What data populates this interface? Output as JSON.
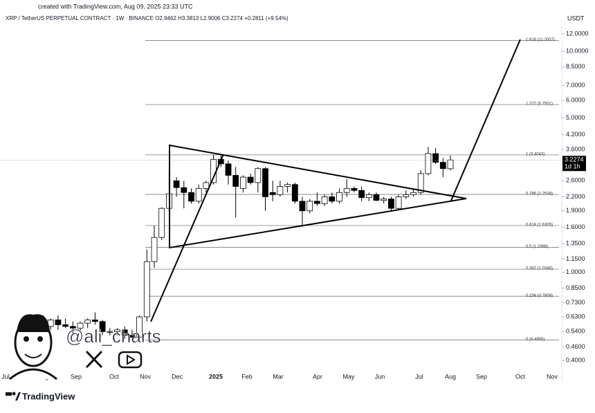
{
  "chart_data": {
    "type": "candlestick",
    "title": "created with TradingView.com, Aug 09, 2025 23:33 UTC",
    "subtitle": "XRP / TetherUS PERPETUAL CONTRACT · 1W · BINANCE  O2.9462  H3.3813  L2.9006  C3.2274  +0.2811 (+9.54%)",
    "currency": "USDT",
    "last_price": 3.2274,
    "countdown": "1d 1h",
    "watermark": "@ali_charts",
    "brand": "TradingView",
    "log_scale": true,
    "grid": false,
    "ylim": [
      0.3365,
      14.79
    ],
    "yticks": [
      {
        "value": 12,
        "label": "12.0000"
      },
      {
        "value": 10,
        "label": "10.0000"
      },
      {
        "value": 8.5,
        "label": "8.5000"
      },
      {
        "value": 7,
        "label": "7.0000"
      },
      {
        "value": 6,
        "label": "6.0000"
      },
      {
        "value": 5,
        "label": "5.0000"
      },
      {
        "value": 4.2,
        "label": "4.2000"
      },
      {
        "value": 3.6,
        "label": "3.6000"
      },
      {
        "value": 2.6,
        "label": "2.6000"
      },
      {
        "value": 2.2,
        "label": "2.2000"
      },
      {
        "value": 1.9,
        "label": "1.9000"
      },
      {
        "value": 1.6,
        "label": "1.6000"
      },
      {
        "value": 1.35,
        "label": "1.3500"
      },
      {
        "value": 1.15,
        "label": "1.1500"
      },
      {
        "value": 1,
        "label": "1.0000"
      },
      {
        "value": 0.85,
        "label": "0.8500"
      },
      {
        "value": 0.73,
        "label": "0.7300"
      },
      {
        "value": 0.63,
        "label": "0.6300"
      },
      {
        "value": 0.54,
        "label": "0.5400"
      },
      {
        "value": 0.46,
        "label": "0.4600"
      },
      {
        "value": 0.4,
        "label": "0.4000"
      }
    ],
    "x_labels": [
      "Jul",
      "Aug",
      "Sep",
      "Oct",
      "Nov",
      "Dec",
      "2025",
      "Feb",
      "Mar",
      "Apr",
      "May",
      "Jun",
      "Jul",
      "Aug",
      "Sep",
      "Oct",
      "Nov"
    ],
    "fib_levels": [
      {
        "value": 11.2007,
        "label": "1.618 (11.2007)"
      },
      {
        "value": 5.7501,
        "label": "1.272 (5.7501)"
      },
      {
        "value": 3.4043,
        "label": "1 (3.4043)"
      },
      {
        "value": 2.2538,
        "label": "0.786 (2.2538)"
      },
      {
        "value": 1.6305,
        "label": "0.618 (1.6305)"
      },
      {
        "value": 1.2988,
        "label": "0.5 (1.2988)"
      },
      {
        "value": 1.0346,
        "label": "0.382 (1.0346)"
      },
      {
        "value": 0.7809,
        "label": "0.236 (0.7809)"
      },
      {
        "value": 0.4955,
        "label": "0 (0.4955)"
      }
    ],
    "candles": [
      {
        "open": 0.47,
        "high": 0.56,
        "low": 0.43,
        "close": 0.54
      },
      {
        "open": 0.54,
        "high": 0.64,
        "low": 0.53,
        "close": 0.6
      },
      {
        "open": 0.6,
        "high": 0.64,
        "low": 0.57,
        "close": 0.59
      },
      {
        "open": 0.59,
        "high": 0.64,
        "low": 0.43,
        "close": 0.57
      },
      {
        "open": 0.57,
        "high": 0.62,
        "low": 0.55,
        "close": 0.61
      },
      {
        "open": 0.61,
        "high": 0.64,
        "low": 0.55,
        "close": 0.58
      },
      {
        "open": 0.58,
        "high": 0.62,
        "low": 0.56,
        "close": 0.57
      },
      {
        "open": 0.57,
        "high": 0.6,
        "low": 0.53,
        "close": 0.56
      },
      {
        "open": 0.56,
        "high": 0.6,
        "low": 0.54,
        "close": 0.59
      },
      {
        "open": 0.59,
        "high": 0.62,
        "low": 0.56,
        "close": 0.61
      },
      {
        "open": 0.61,
        "high": 0.66,
        "low": 0.58,
        "close": 0.6
      },
      {
        "open": 0.6,
        "high": 0.61,
        "low": 0.52,
        "close": 0.54
      },
      {
        "open": 0.54,
        "high": 0.56,
        "low": 0.52,
        "close": 0.54
      },
      {
        "open": 0.54,
        "high": 0.56,
        "low": 0.52,
        "close": 0.55
      },
      {
        "open": 0.55,
        "high": 0.57,
        "low": 0.5,
        "close": 0.52
      },
      {
        "open": 0.52,
        "high": 0.55,
        "low": 0.49,
        "close": 0.51
      },
      {
        "open": 0.51,
        "high": 0.64,
        "low": 0.5,
        "close": 0.63
      },
      {
        "open": 0.63,
        "high": 1.27,
        "low": 0.6,
        "close": 1.12
      },
      {
        "open": 1.12,
        "high": 1.63,
        "low": 1.05,
        "close": 1.44
      },
      {
        "open": 1.44,
        "high": 1.97,
        "low": 1.4,
        "close": 1.95
      },
      {
        "open": 1.95,
        "high": 2.9,
        "low": 1.9,
        "close": 2.27
      },
      {
        "open": 2.6,
        "high": 2.7,
        "low": 2.2,
        "close": 2.42
      },
      {
        "open": 2.42,
        "high": 2.6,
        "low": 1.95,
        "close": 2.3
      },
      {
        "open": 2.3,
        "high": 2.4,
        "low": 2.05,
        "close": 2.1
      },
      {
        "open": 2.1,
        "high": 2.5,
        "low": 2.05,
        "close": 2.4
      },
      {
        "open": 2.4,
        "high": 2.6,
        "low": 2.3,
        "close": 2.55
      },
      {
        "open": 2.55,
        "high": 3.4,
        "low": 2.5,
        "close": 3.25
      },
      {
        "open": 3.25,
        "high": 3.4,
        "low": 3.0,
        "close": 3.1
      },
      {
        "open": 3.1,
        "high": 3.2,
        "low": 2.5,
        "close": 2.75
      },
      {
        "open": 2.75,
        "high": 3.0,
        "low": 1.77,
        "close": 2.45
      },
      {
        "open": 2.4,
        "high": 2.75,
        "low": 2.3,
        "close": 2.7
      },
      {
        "open": 2.7,
        "high": 2.8,
        "low": 2.5,
        "close": 2.55
      },
      {
        "open": 2.55,
        "high": 3.0,
        "low": 2.3,
        "close": 2.95
      },
      {
        "open": 2.95,
        "high": 3.0,
        "low": 1.9,
        "close": 2.2
      },
      {
        "open": 2.3,
        "high": 2.6,
        "low": 2.1,
        "close": 2.25
      },
      {
        "open": 2.25,
        "high": 2.6,
        "low": 2.2,
        "close": 2.45
      },
      {
        "open": 2.45,
        "high": 2.55,
        "low": 2.3,
        "close": 2.5
      },
      {
        "open": 2.5,
        "high": 2.55,
        "low": 2.05,
        "close": 2.1
      },
      {
        "open": 2.1,
        "high": 2.2,
        "low": 1.61,
        "close": 1.9
      },
      {
        "open": 1.9,
        "high": 2.15,
        "low": 1.85,
        "close": 2.1
      },
      {
        "open": 2.1,
        "high": 2.3,
        "low": 2.0,
        "close": 2.05
      },
      {
        "open": 2.05,
        "high": 2.25,
        "low": 2.0,
        "close": 2.2
      },
      {
        "open": 2.2,
        "high": 2.3,
        "low": 2.05,
        "close": 2.1
      },
      {
        "open": 2.1,
        "high": 2.4,
        "low": 2.05,
        "close": 2.3
      },
      {
        "open": 2.3,
        "high": 2.65,
        "low": 2.2,
        "close": 2.4
      },
      {
        "open": 2.4,
        "high": 2.45,
        "low": 2.3,
        "close": 2.35
      },
      {
        "open": 2.35,
        "high": 2.45,
        "low": 2.1,
        "close": 2.18
      },
      {
        "open": 2.18,
        "high": 2.3,
        "low": 2.1,
        "close": 2.25
      },
      {
        "open": 2.25,
        "high": 2.3,
        "low": 2.1,
        "close": 2.12
      },
      {
        "open": 2.12,
        "high": 2.2,
        "low": 2.05,
        "close": 2.15
      },
      {
        "open": 2.15,
        "high": 2.2,
        "low": 1.9,
        "close": 1.95
      },
      {
        "open": 1.95,
        "high": 2.25,
        "low": 1.93,
        "close": 2.2
      },
      {
        "open": 2.2,
        "high": 2.35,
        "low": 2.15,
        "close": 2.25
      },
      {
        "open": 2.25,
        "high": 2.4,
        "low": 2.2,
        "close": 2.3
      },
      {
        "open": 2.3,
        "high": 2.9,
        "low": 2.25,
        "close": 2.8
      },
      {
        "open": 2.8,
        "high": 3.7,
        "low": 2.75,
        "close": 3.45
      },
      {
        "open": 3.45,
        "high": 3.66,
        "low": 3.1,
        "close": 3.15
      },
      {
        "open": 3.15,
        "high": 3.3,
        "low": 2.7,
        "close": 2.95
      },
      {
        "open": 2.9462,
        "high": 3.3813,
        "low": 2.9006,
        "close": 3.2274
      }
    ]
  }
}
